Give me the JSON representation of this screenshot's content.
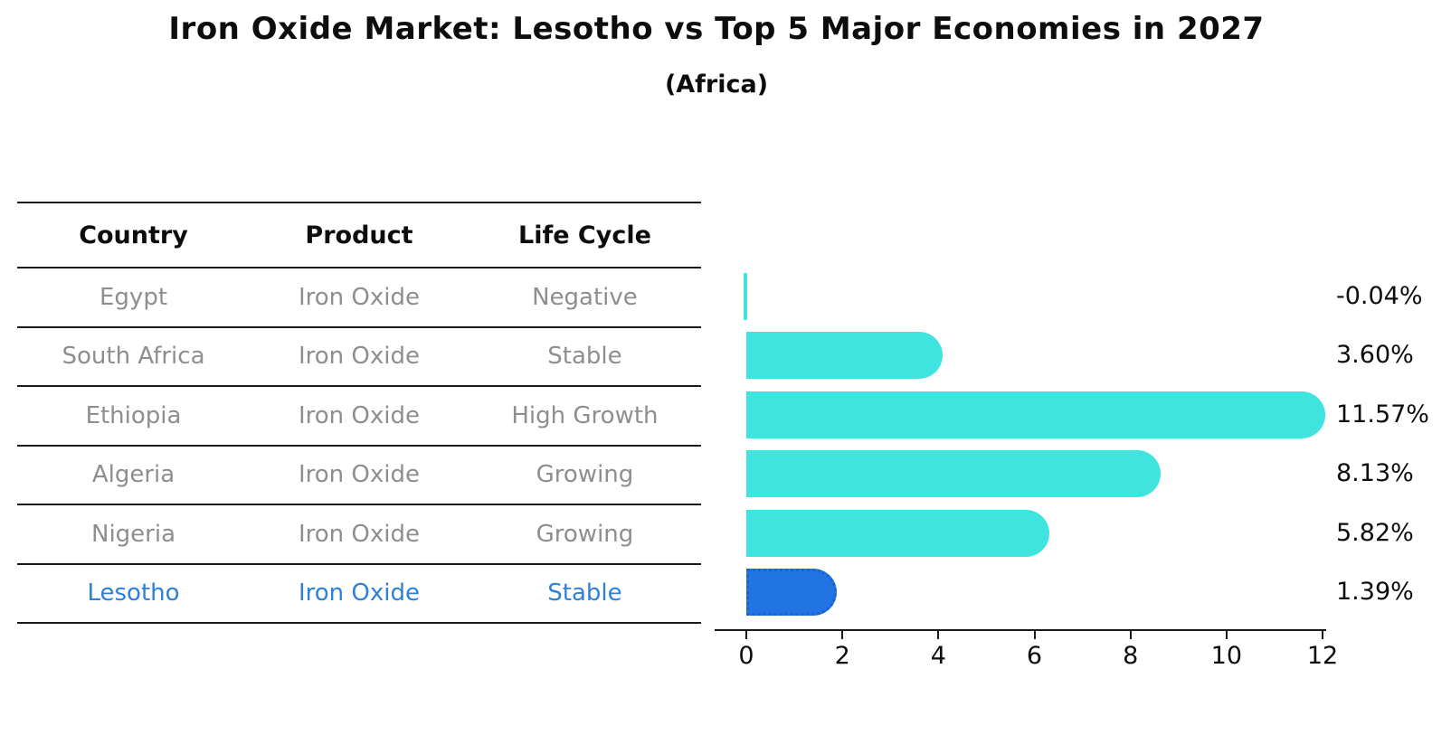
{
  "title": "Iron Oxide Market: Lesotho vs Top 5 Major Economies in 2027",
  "subtitle": "(Africa)",
  "table": {
    "columns": [
      "Country",
      "Product",
      "Life Cycle"
    ],
    "rows": [
      {
        "country": "Egypt",
        "product": "Iron Oxide",
        "life_cycle": "Negative"
      },
      {
        "country": "South Africa",
        "product": "Iron Oxide",
        "life_cycle": "Stable"
      },
      {
        "country": "Ethiopia",
        "product": "Iron Oxide",
        "life_cycle": "High Growth"
      },
      {
        "country": "Algeria",
        "product": "Iron Oxide",
        "life_cycle": "Growing"
      },
      {
        "country": "Nigeria",
        "product": "Iron Oxide",
        "life_cycle": "Growing"
      },
      {
        "country": "Lesotho",
        "product": "Iron Oxide",
        "life_cycle": "Stable"
      }
    ]
  },
  "chart_data": {
    "type": "bar",
    "orientation": "horizontal",
    "title": "Iron Oxide Market: Lesotho vs Top 5 Major Economies in 2027",
    "subtitle": "(Africa)",
    "categories": [
      "Egypt",
      "South Africa",
      "Ethiopia",
      "Algeria",
      "Nigeria",
      "Lesotho"
    ],
    "values": [
      -0.04,
      3.6,
      11.57,
      8.13,
      5.82,
      1.39
    ],
    "value_labels": [
      "-0.04%",
      "3.60%",
      "11.57%",
      "8.13%",
      "5.82%",
      "1.39%"
    ],
    "xlabel": "",
    "ylabel": "",
    "xlim": [
      0,
      12
    ],
    "xticks": [
      0,
      2,
      4,
      6,
      8,
      10,
      12
    ],
    "grid": false,
    "legend": "none",
    "highlight_index": 5,
    "colors": {
      "bar": "#40E4DF",
      "highlight_bar": "#2273E3",
      "highlight_border": "#1b63cc",
      "highlight_text": "#2E80D8",
      "table_text": "#8E8E8E",
      "heading_text": "#0d0d0d"
    }
  }
}
